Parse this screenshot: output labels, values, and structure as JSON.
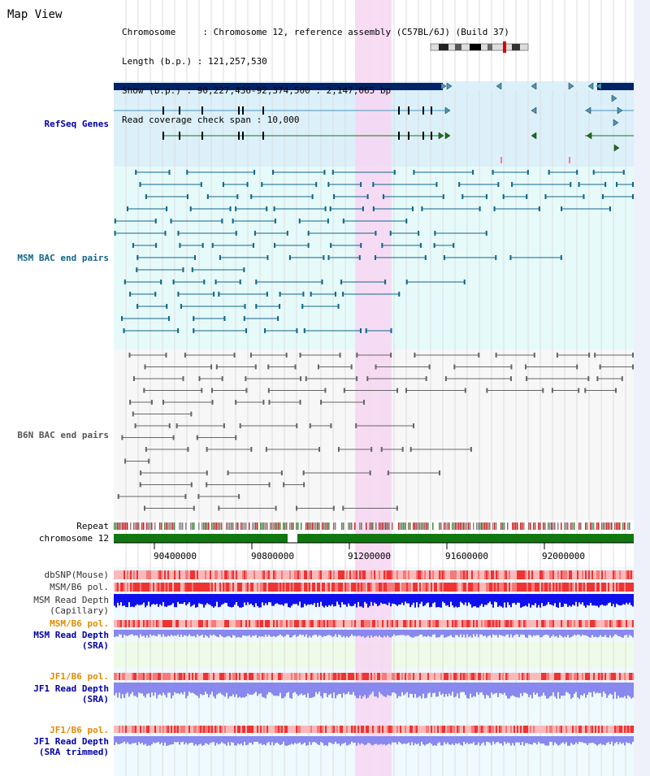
{
  "header": {
    "title": "Map View",
    "info_lines": [
      "Chromosome     : Chromosome 12, reference assembly (C57BL/6J) (Build 37)",
      "Length (b.p.) : 121,257,530",
      "Show (b.p.) : 90,227,436-92,374,500 : 2,147,065 bp",
      "Read coverage check span : 10,000"
    ]
  },
  "tracks": {
    "refseq": "RefSeq Genes",
    "msm_bac": "MSM BAC end pairs",
    "b6n_bac": "B6N BAC end pairs",
    "repeat": "Repeat",
    "chromosome": "chromosome 12",
    "dbsnp": "dbSNP(Mouse)",
    "msm_b6_pol_1": "MSM/B6 pol.",
    "msm_read_depth_cap_1": "MSM Read Depth",
    "msm_read_depth_cap_2": "(Capillary)",
    "msm_b6_pol_2": "MSM/B6 pol.",
    "msm_read_depth_sra_1": "MSM Read Depth",
    "msm_read_depth_sra_2": "(SRA)",
    "jf1_b6_pol_1": "JF1/B6 pol.",
    "jf1_read_depth_sra_1": "JF1 Read Depth",
    "jf1_read_depth_sra_2": "(SRA)",
    "jf1_b6_pol_2": "JF1/B6 pol.",
    "jf1_read_depth_trim_1": "JF1 Read Depth",
    "jf1_read_depth_trim_2": "(SRA trimmed)"
  },
  "axis": {
    "ticks": [
      "90400000",
      "90800000",
      "91200000",
      "91600000",
      "92000000"
    ]
  },
  "colors": {
    "refseq_bg": "#dcf0fa",
    "msm_bg": "#e6fafa",
    "b6n_bg": "#f7f7f7",
    "highlight": "#f7d6f2",
    "chrom_green": "#117711",
    "gene_blue": "#4499bb",
    "gene_dark": "#002266",
    "gene_green": "#117711",
    "bac_teal": "#116688",
    "bac_gray": "#666666",
    "depth_blue": "#1010ee",
    "depth_light": "#8888ee",
    "pol_red": "#ee3333"
  }
}
